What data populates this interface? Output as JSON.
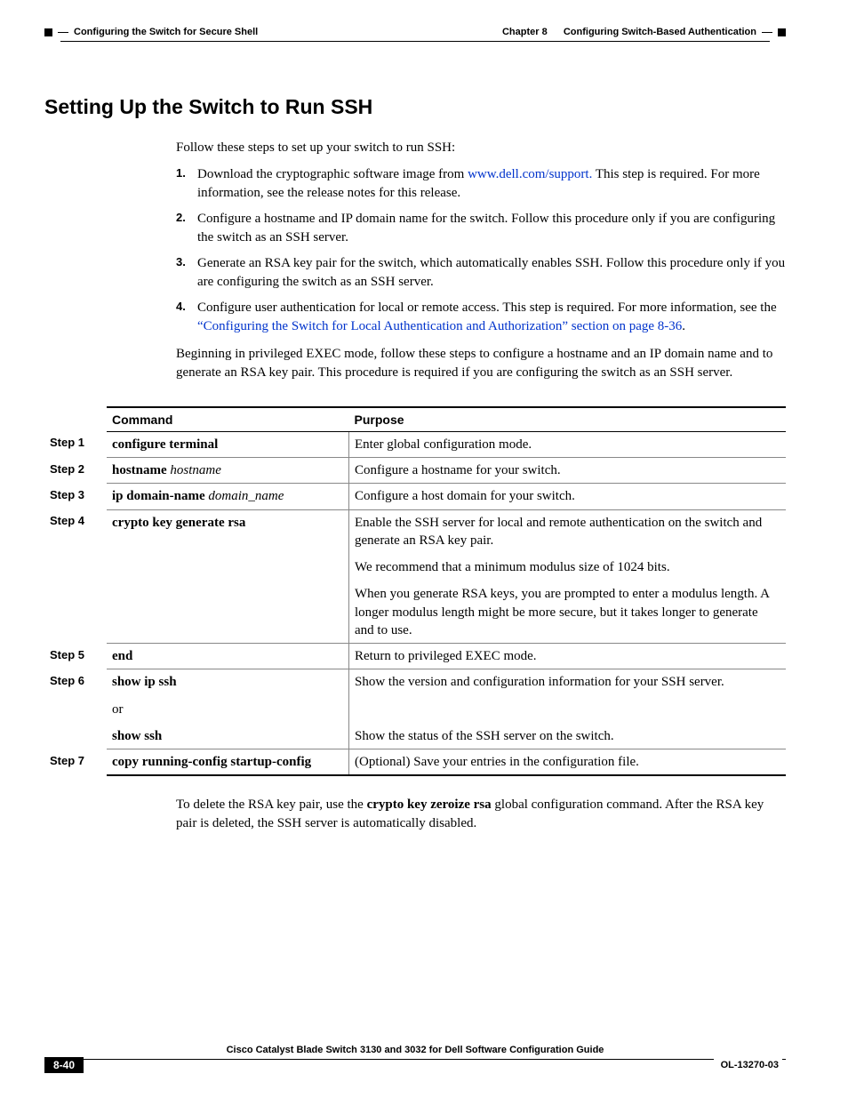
{
  "header": {
    "chapter_label": "Chapter 8",
    "chapter_title": "Configuring Switch-Based Authentication",
    "section_title": "Configuring the Switch for Secure Shell"
  },
  "heading": "Setting Up the Switch to Run SSH",
  "intro": "Follow these steps to set up your switch to run SSH:",
  "steps": [
    {
      "n": "1.",
      "pre": "  Download the cryptographic software image from ",
      "link": "www.dell.com/support.",
      "post": " This step is required. For more information, see the release notes for this release."
    },
    {
      "n": "2.",
      "text": "Configure a hostname and IP domain name for the switch. Follow this procedure only if you are configuring the switch as an SSH server."
    },
    {
      "n": "3.",
      "text": "Generate an RSA key pair for the switch, which automatically enables SSH. Follow this procedure only if you are configuring the switch as an SSH server."
    },
    {
      "n": "4.",
      "pre": "Configure user authentication for local or remote access. This step is required. For more information, see the ",
      "link": "“Configuring the Switch for Local Authentication and Authorization” section on page 8-36",
      "post": "."
    }
  ],
  "pre_table": "Beginning in privileged EXEC mode, follow these steps to configure a hostname and an IP domain name and to generate an RSA key pair. This procedure is required if you are configuring the switch as an SSH server.",
  "table": {
    "headers": {
      "command": "Command",
      "purpose": "Purpose"
    },
    "rows": [
      {
        "step": "Step 1",
        "command_html": "<span class=\"bold\">configure terminal</span>",
        "purpose_html": "Enter global configuration mode."
      },
      {
        "step": "Step 2",
        "command_html": "<span class=\"bold\">hostname</span> <span class=\"ital\">hostname</span>",
        "purpose_html": "Configure a hostname for your switch."
      },
      {
        "step": "Step 3",
        "command_html": "<span class=\"bold\">ip domain-name</span> <span class=\"ital\">domain_name</span>",
        "purpose_html": "Configure a host domain for your switch."
      },
      {
        "step": "Step 4",
        "command_html": "<span class=\"bold\">crypto key generate rsa</span>",
        "purpose_html": "<p class=\"multi-p\">Enable the SSH server for local and remote authentication on the switch and generate an RSA key pair.</p><p class=\"multi-p\">We recommend that a minimum modulus size of 1024 bits.</p><p class=\"multi-p\">When you generate RSA keys, you are prompted to enter a modulus length. A longer modulus length might be more secure, but it takes longer to generate and to use.</p>"
      },
      {
        "step": "Step 5",
        "command_html": "<span class=\"bold\">end</span>",
        "purpose_html": "Return to privileged EXEC mode."
      },
      {
        "step": "Step 6",
        "command_html": "<p class=\"multi-p\"><span class=\"bold\">show ip ssh</span></p><p class=\"multi-p\">or</p><p class=\"multi-p\"><span class=\"bold\">show ssh</span></p>",
        "purpose_html": "<p class=\"multi-p\">Show the version and configuration information for your SSH server.</p><p class=\"multi-p\">&nbsp;</p><p class=\"multi-p\">Show the status of the SSH server on the switch.</p>"
      },
      {
        "step": "Step 7",
        "command_html": "<span class=\"bold\">copy running-config startup-config</span>",
        "purpose_html": "(Optional) Save your entries in the configuration file."
      }
    ]
  },
  "post_table": {
    "pre": "To delete the RSA key pair, use the ",
    "bold": "crypto key zeroize rsa",
    "post": " global configuration command. After the RSA key pair is deleted, the SSH server is automatically disabled."
  },
  "footer": {
    "guide": "Cisco Catalyst Blade Switch 3130 and 3032 for Dell Software Configuration Guide",
    "page": "8-40",
    "doc": "OL-13270-03"
  }
}
